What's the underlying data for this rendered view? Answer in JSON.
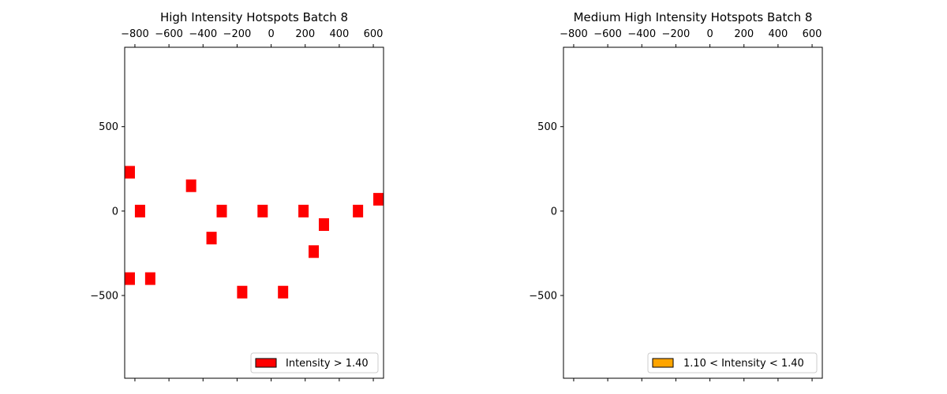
{
  "chart_data": [
    {
      "type": "scatter",
      "title": "High Intensity Hotspots Batch 8",
      "xlabel": "",
      "ylabel": "",
      "xlim": [
        -860,
        660
      ],
      "ylim": [
        -990,
        970
      ],
      "x_ticks": [
        -800,
        -600,
        -400,
        -200,
        0,
        200,
        400,
        600
      ],
      "x_tick_labels": [
        "−800",
        "−600",
        "−400",
        "−200",
        "0",
        "200",
        "400",
        "600"
      ],
      "y_ticks": [
        500,
        0,
        -500
      ],
      "y_tick_labels": [
        "500",
        "0",
        "−500"
      ],
      "x_ticks_position": "top",
      "grid": false,
      "legend": {
        "label": "Intensity > 1.40",
        "color": "#ff0000",
        "position": "lower right"
      },
      "marker": "rectangle",
      "points": [
        {
          "x": -830,
          "y": 230
        },
        {
          "x": -770,
          "y": 0
        },
        {
          "x": -830,
          "y": -400
        },
        {
          "x": -710,
          "y": -400
        },
        {
          "x": -470,
          "y": 150
        },
        {
          "x": -350,
          "y": -160
        },
        {
          "x": -290,
          "y": 0
        },
        {
          "x": -170,
          "y": -480
        },
        {
          "x": -50,
          "y": 0
        },
        {
          "x": 70,
          "y": -480
        },
        {
          "x": 190,
          "y": 0
        },
        {
          "x": 250,
          "y": -240
        },
        {
          "x": 310,
          "y": -80
        },
        {
          "x": 510,
          "y": 0
        },
        {
          "x": 630,
          "y": 70
        }
      ]
    },
    {
      "type": "scatter",
      "title": "Medium High Intensity Hotspots Batch 8",
      "xlabel": "",
      "ylabel": "",
      "xlim": [
        -860,
        660
      ],
      "ylim": [
        -990,
        970
      ],
      "x_ticks": [
        -800,
        -600,
        -400,
        -200,
        0,
        200,
        400,
        600
      ],
      "x_tick_labels": [
        "−800",
        "−600",
        "−400",
        "−200",
        "0",
        "200",
        "400",
        "600"
      ],
      "y_ticks": [
        500,
        0,
        -500
      ],
      "y_tick_labels": [
        "500",
        "0",
        "−500"
      ],
      "x_ticks_position": "top",
      "grid": false,
      "legend": {
        "label": "1.10 < Intensity < 1.40",
        "color": "#ffa500",
        "position": "lower right"
      },
      "marker": "rectangle",
      "points": []
    }
  ]
}
